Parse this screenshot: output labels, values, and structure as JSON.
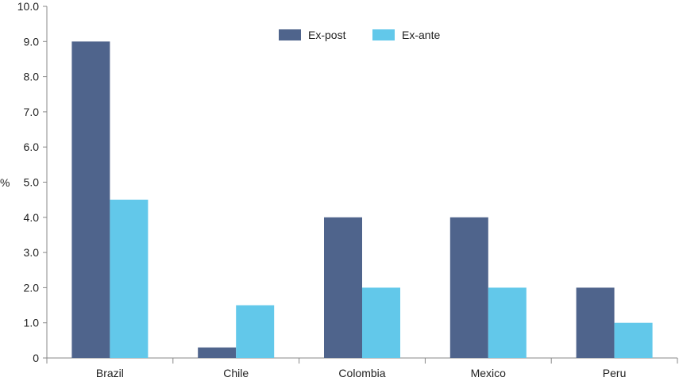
{
  "chart_data": {
    "type": "bar",
    "categories": [
      "Brazil",
      "Chile",
      "Colombia",
      "Mexico",
      "Peru"
    ],
    "series": [
      {
        "name": "Ex-post",
        "color": "#4f648c",
        "values": [
          9.0,
          0.3,
          4.0,
          4.0,
          2.0
        ]
      },
      {
        "name": "Ex-ante",
        "color": "#62c8ea",
        "values": [
          4.5,
          1.5,
          2.0,
          2.0,
          1.0
        ]
      }
    ],
    "ylabel": "%",
    "ylim": [
      0,
      10
    ],
    "yticks": [
      "0",
      "1.0",
      "2.0",
      "3.0",
      "4.0",
      "5.0",
      "6.0",
      "7.0",
      "8.0",
      "9.0",
      "10.0"
    ],
    "grid": false,
    "legend": "top-center"
  }
}
